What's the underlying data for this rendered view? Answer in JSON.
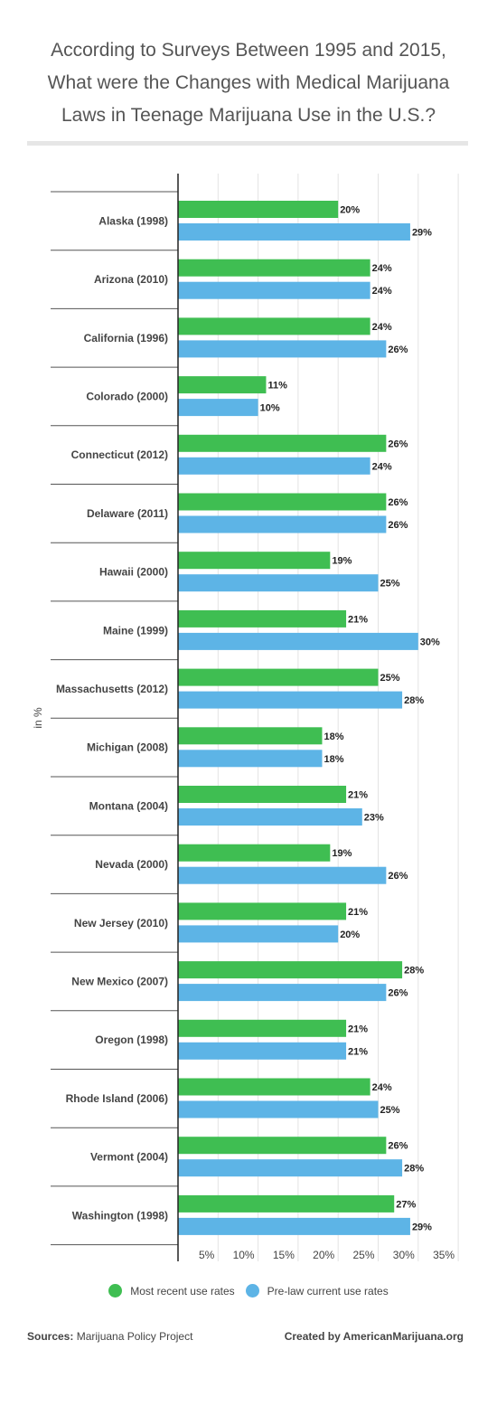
{
  "title_lines": [
    "According to Surveys Between 1995 and 2015,",
    "What were the Changes with Medical Marijuana",
    "Laws in Teenage Marijuana Use in the U.S.?"
  ],
  "colors": {
    "green": "#3fbe52",
    "blue": "#5db4e6"
  },
  "chart_data": {
    "type": "bar",
    "orientation": "horizontal",
    "title": "According to Surveys Between 1995 and 2015, What were the Changes with Medical Marijuana Laws in Teenage Marijuana Use in the U.S.?",
    "ylabel": "in %",
    "xlim": [
      0,
      35
    ],
    "xticks": [
      "5%",
      "10%",
      "15%",
      "20%",
      "25%",
      "30%",
      "35%"
    ],
    "grid": true,
    "legend_position": "bottom",
    "categories": [
      "Alaska (1998)",
      "Arizona (2010)",
      "California (1996)",
      "Colorado (2000)",
      "Connecticut (2012)",
      "Delaware (2011)",
      "Hawaii (2000)",
      "Maine (1999)",
      "Massachusetts (2012)",
      "Michigan (2008)",
      "Montana (2004)",
      "Nevada (2000)",
      "New Jersey (2010)",
      "New Mexico (2007)",
      "Oregon (1998)",
      "Rhode Island (2006)",
      "Vermont (2004)",
      "Washington (1998)"
    ],
    "series": [
      {
        "name": "Most recent use rates",
        "color": "#3fbe52",
        "values": [
          20,
          24,
          24,
          11,
          26,
          26,
          19,
          21,
          25,
          18,
          21,
          19,
          21,
          28,
          21,
          24,
          26,
          27
        ]
      },
      {
        "name": "Pre-law current use rates",
        "color": "#5db4e6",
        "values": [
          29,
          24,
          26,
          10,
          24,
          26,
          25,
          30,
          28,
          18,
          23,
          26,
          20,
          26,
          21,
          25,
          28,
          29
        ]
      }
    ]
  },
  "legend": {
    "green_label": "Most recent use rates",
    "blue_label": "Pre-law current use rates"
  },
  "footer": {
    "sources_label": "Sources:",
    "sources_value": "Marijuana Policy Project",
    "credit": "Created by AmericanMarijuana.org"
  }
}
